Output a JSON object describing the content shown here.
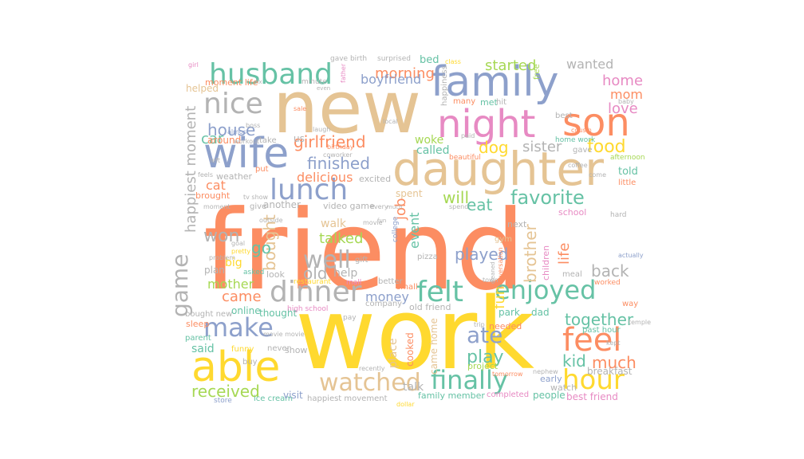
{
  "palette": {
    "orange": "#fc8d62",
    "gold": "#ffd92f",
    "tan": "#e5c494",
    "blue": "#8da0cb",
    "pink": "#e78ac3",
    "teal": "#66c2a5",
    "green": "#a6d854",
    "gray": "#b3b3b3"
  },
  "words": [
    {
      "text": "friend",
      "color": "orange"
    },
    {
      "text": "work",
      "color": "gold"
    },
    {
      "text": "new",
      "color": "tan"
    },
    {
      "text": "daughter",
      "color": "tan"
    },
    {
      "text": "family",
      "color": "blue"
    },
    {
      "text": "night",
      "color": "pink"
    },
    {
      "text": "son",
      "color": "orange"
    },
    {
      "text": "wife",
      "color": "blue"
    },
    {
      "text": "husband",
      "color": "teal"
    },
    {
      "text": "able",
      "color": "gold"
    },
    {
      "text": "dinner",
      "color": "gray"
    },
    {
      "text": "felt",
      "color": "teal"
    },
    {
      "text": "hour",
      "color": "gold"
    },
    {
      "text": "feel",
      "color": "orange"
    },
    {
      "text": "make",
      "color": "blue"
    },
    {
      "text": "finally",
      "color": "teal"
    },
    {
      "text": "enjoyed",
      "color": "teal"
    },
    {
      "text": "watched",
      "color": "tan"
    },
    {
      "text": "lunch",
      "color": "blue"
    },
    {
      "text": "nice",
      "color": "gray"
    },
    {
      "text": "game",
      "color": "gray"
    },
    {
      "text": "well",
      "color": "gray"
    },
    {
      "text": "favorite",
      "color": "teal"
    },
    {
      "text": "food",
      "color": "gold"
    },
    {
      "text": "ate",
      "color": "blue"
    },
    {
      "text": "received",
      "color": "green"
    },
    {
      "text": "won",
      "color": "gray"
    },
    {
      "text": "girlfriend",
      "color": "orange"
    },
    {
      "text": "finished",
      "color": "blue"
    },
    {
      "text": "house",
      "color": "blue"
    },
    {
      "text": "morning",
      "color": "orange"
    },
    {
      "text": "boyfriend",
      "color": "blue"
    },
    {
      "text": "started",
      "color": "green"
    },
    {
      "text": "wanted",
      "color": "gray"
    },
    {
      "text": "sister",
      "color": "gray"
    },
    {
      "text": "happiest moment",
      "color": "gray"
    },
    {
      "text": "dog",
      "color": "gold"
    },
    {
      "text": "bought",
      "color": "tan"
    },
    {
      "text": "talked",
      "color": "green"
    },
    {
      "text": "will",
      "color": "green"
    },
    {
      "text": "eat",
      "color": "teal"
    },
    {
      "text": "car",
      "color": "teal"
    },
    {
      "text": "old",
      "color": "gray"
    },
    {
      "text": "played",
      "color": "blue"
    },
    {
      "text": "came",
      "color": "orange"
    },
    {
      "text": "money",
      "color": "blue"
    },
    {
      "text": "play",
      "color": "teal"
    },
    {
      "text": "brother",
      "color": "tan"
    },
    {
      "text": "together",
      "color": "teal"
    },
    {
      "text": "kid",
      "color": "teal"
    },
    {
      "text": "much",
      "color": "orange"
    },
    {
      "text": "home",
      "color": "pink"
    },
    {
      "text": "mom",
      "color": "orange"
    },
    {
      "text": "love",
      "color": "pink"
    },
    {
      "text": "go",
      "color": "teal"
    },
    {
      "text": "job",
      "color": "orange"
    },
    {
      "text": "life",
      "color": "orange"
    },
    {
      "text": "back",
      "color": "gray"
    },
    {
      "text": "fun",
      "color": "gold"
    },
    {
      "text": "event",
      "color": "teal"
    },
    {
      "text": "walk",
      "color": "tan"
    },
    {
      "text": "delicious",
      "color": "orange"
    },
    {
      "text": "cat",
      "color": "orange"
    },
    {
      "text": "called",
      "color": "teal"
    },
    {
      "text": "woke",
      "color": "green"
    },
    {
      "text": "us",
      "color": "gray"
    },
    {
      "text": "mother",
      "color": "green"
    },
    {
      "text": "said",
      "color": "teal"
    },
    {
      "text": "talk",
      "color": "gray"
    },
    {
      "text": "told",
      "color": "teal"
    },
    {
      "text": "around",
      "color": "orange"
    },
    {
      "text": "big",
      "color": "gold"
    },
    {
      "text": "help",
      "color": "gray"
    },
    {
      "text": "school",
      "color": "pink"
    },
    {
      "text": "bed",
      "color": "teal"
    },
    {
      "text": "spent",
      "color": "tan"
    },
    {
      "text": "excited",
      "color": "gray"
    },
    {
      "text": "another",
      "color": "gray"
    },
    {
      "text": "video game",
      "color": "gray"
    },
    {
      "text": "online",
      "color": "teal"
    },
    {
      "text": "thought",
      "color": "teal"
    },
    {
      "text": "place",
      "color": "tan"
    },
    {
      "text": "cooked",
      "color": "orange"
    },
    {
      "text": "came home",
      "color": "tan"
    },
    {
      "text": "breakfast",
      "color": "gray"
    },
    {
      "text": "people",
      "color": "teal"
    },
    {
      "text": "best friend",
      "color": "pink"
    },
    {
      "text": "family member",
      "color": "teal"
    },
    {
      "text": "happiest movement",
      "color": "gray"
    },
    {
      "text": "ice cream",
      "color": "teal"
    },
    {
      "text": "visit",
      "color": "blue"
    },
    {
      "text": "store",
      "color": "blue"
    },
    {
      "text": "dad",
      "color": "teal"
    },
    {
      "text": "early",
      "color": "blue"
    },
    {
      "text": "watch",
      "color": "gray"
    },
    {
      "text": "completed",
      "color": "pink"
    },
    {
      "text": "project",
      "color": "green"
    },
    {
      "text": "park",
      "color": "teal"
    },
    {
      "text": "needed",
      "color": "orange"
    },
    {
      "text": "children",
      "color": "pink"
    },
    {
      "text": "gym",
      "color": "tan"
    },
    {
      "text": "next",
      "color": "gray"
    },
    {
      "text": "moment life",
      "color": "orange"
    },
    {
      "text": "helped",
      "color": "tan"
    },
    {
      "text": "take",
      "color": "gray"
    },
    {
      "text": "weather",
      "color": "gray"
    },
    {
      "text": "brought",
      "color": "orange"
    },
    {
      "text": "give",
      "color": "gray"
    },
    {
      "text": "plan",
      "color": "gray"
    },
    {
      "text": "look",
      "color": "gray"
    },
    {
      "text": "asked",
      "color": "teal"
    },
    {
      "text": "pizza",
      "color": "gray"
    },
    {
      "text": "gift",
      "color": "gray"
    },
    {
      "text": "sleep",
      "color": "orange"
    },
    {
      "text": "bought new",
      "color": "gray"
    },
    {
      "text": "parent",
      "color": "teal"
    },
    {
      "text": "funny",
      "color": "gold"
    },
    {
      "text": "buy",
      "color": "gray"
    },
    {
      "text": "never",
      "color": "gray"
    },
    {
      "text": "show",
      "color": "gray"
    },
    {
      "text": "high school",
      "color": "pink"
    },
    {
      "text": "pay",
      "color": "gray"
    },
    {
      "text": "old friend",
      "color": "gray"
    },
    {
      "text": "company",
      "color": "gray"
    },
    {
      "text": "better",
      "color": "gray"
    },
    {
      "text": "small",
      "color": "orange"
    },
    {
      "text": "mall",
      "color": "pink"
    },
    {
      "text": "restaurant",
      "color": "gold"
    },
    {
      "text": "meal",
      "color": "gray"
    },
    {
      "text": "worked",
      "color": "orange"
    },
    {
      "text": "way",
      "color": "orange"
    },
    {
      "text": "past hour",
      "color": "teal"
    },
    {
      "text": "hard",
      "color": "gray"
    },
    {
      "text": "actually",
      "color": "blue"
    },
    {
      "text": "little",
      "color": "orange"
    },
    {
      "text": "afternoon",
      "color": "green"
    },
    {
      "text": "gave",
      "color": "gray"
    },
    {
      "text": "home work",
      "color": "teal"
    },
    {
      "text": "best",
      "color": "gray"
    },
    {
      "text": "met",
      "color": "teal"
    },
    {
      "text": "hit",
      "color": "gray"
    },
    {
      "text": "many",
      "color": "orange"
    },
    {
      "text": "happiness",
      "color": "gray"
    },
    {
      "text": "free",
      "color": "green"
    },
    {
      "text": "beautiful",
      "color": "orange"
    },
    {
      "text": "paid",
      "color": "gray"
    },
    {
      "text": "college",
      "color": "blue"
    },
    {
      "text": "spend",
      "color": "gray"
    },
    {
      "text": "birthday",
      "color": "orange"
    },
    {
      "text": "coworker",
      "color": "gray"
    },
    {
      "text": "workout",
      "color": "gray"
    },
    {
      "text": "boss",
      "color": "gray"
    },
    {
      "text": "almost",
      "color": "blue"
    },
    {
      "text": "sale",
      "color": "orange"
    },
    {
      "text": "minute",
      "color": "gray"
    },
    {
      "text": "gave birth",
      "color": "gray"
    },
    {
      "text": "surprised",
      "color": "gray"
    },
    {
      "text": "girl",
      "color": "pink"
    },
    {
      "text": "father",
      "color": "pink"
    },
    {
      "text": "class",
      "color": "gold"
    },
    {
      "text": "local",
      "color": "gray"
    },
    {
      "text": "tv show",
      "color": "gray"
    },
    {
      "text": "outside",
      "color": "gray"
    },
    {
      "text": "movie",
      "color": "gray"
    },
    {
      "text": "movie movie",
      "color": "gray"
    },
    {
      "text": "tomorrow",
      "color": "orange"
    },
    {
      "text": "nephew",
      "color": "gray"
    },
    {
      "text": "dollar",
      "color": "gold"
    },
    {
      "text": "recently",
      "color": "gray"
    },
    {
      "text": "laugh",
      "color": "gray"
    },
    {
      "text": "pretty",
      "color": "gold"
    },
    {
      "text": "problem",
      "color": "gray"
    },
    {
      "text": "moment",
      "color": "gray"
    },
    {
      "text": "goal",
      "color": "gray"
    },
    {
      "text": "feels",
      "color": "gray"
    },
    {
      "text": "left",
      "color": "gray"
    },
    {
      "text": "put",
      "color": "orange"
    },
    {
      "text": "baby",
      "color": "gray"
    },
    {
      "text": "cousin",
      "color": "orange"
    },
    {
      "text": "coffee",
      "color": "gray"
    },
    {
      "text": "come",
      "color": "gray"
    },
    {
      "text": "temple",
      "color": "gray"
    },
    {
      "text": "kept",
      "color": "gray"
    },
    {
      "text": "trip",
      "color": "gray"
    },
    {
      "text": "every",
      "color": "gray"
    },
    {
      "text": "much",
      "color": "gray"
    },
    {
      "text": "town",
      "color": "gray"
    },
    {
      "text": "conversation",
      "color": "orange"
    },
    {
      "text": "raid",
      "color": "gray"
    },
    {
      "text": "even",
      "color": "gray"
    },
    {
      "text": "fun",
      "color": "gray"
    },
    {
      "text": "fix",
      "color": "gray"
    },
    {
      "text": "cleaned",
      "color": "gray"
    }
  ]
}
